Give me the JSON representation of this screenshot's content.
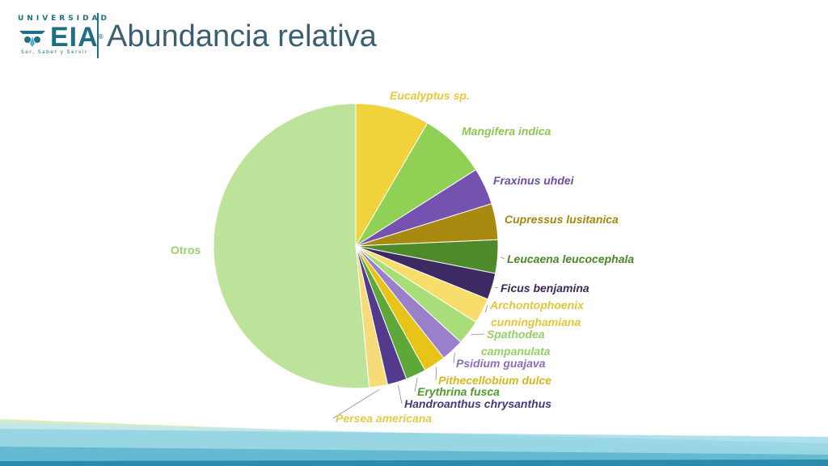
{
  "header": {
    "title": "Abundancia relativa",
    "logo": {
      "top_text": "UNIVERSIDAD",
      "main_text": "EIA",
      "registered": "®",
      "tagline": "Ser, Saber y Servir",
      "icon": "eia-owl-logo"
    }
  },
  "chart_data": {
    "type": "pie",
    "start_angle_deg": 0,
    "direction": "clockwise",
    "slices": [
      {
        "label": "Eucalyptus sp.",
        "value": 8.4,
        "color": "#f0d23a",
        "label_color": "#e9c83a"
      },
      {
        "label": "Mangifera indica",
        "value": 7.6,
        "color": "#8fd055",
        "label_color": "#8cc653"
      },
      {
        "label": "Fraxinus uhdei",
        "value": 4.2,
        "color": "#7552b0",
        "label_color": "#6f4fa6"
      },
      {
        "label": "Cupressus lusitanica",
        "value": 4.1,
        "color": "#a88a10",
        "label_color": "#a4870f"
      },
      {
        "label": "Leucaena leucocephala",
        "value": 3.8,
        "color": "#4e8a2a",
        "label_color": "#4b8628"
      },
      {
        "label": "Ficus benjamina",
        "value": 3.0,
        "color": "#3e2a63",
        "label_color": "#3b2860"
      },
      {
        "label": "Archontophoenix cunninghamiana",
        "value": 2.9,
        "color": "#f7de6a",
        "label_color": "#e4c53a"
      },
      {
        "label": "Spathodea campanulata",
        "value": 2.8,
        "color": "#a9dd7a",
        "label_color": "#96cf66"
      },
      {
        "label": "Psidium guajava",
        "value": 2.6,
        "color": "#9a7fcb",
        "label_color": "#8a6dc0"
      },
      {
        "label": "Pithecellobium dulce",
        "value": 2.5,
        "color": "#e8c418",
        "label_color": "#d8b820"
      },
      {
        "label": "Erythrina fusca",
        "value": 2.3,
        "color": "#5ea83a",
        "label_color": "#4f9a2c"
      },
      {
        "label": "Handroanthus chrysanthus",
        "value": 2.2,
        "color": "#533a8c",
        "label_color": "#4a3580"
      },
      {
        "label": "Persea americana",
        "value": 2.1,
        "color": "#f6dc78",
        "label_color": "#e5c94a"
      },
      {
        "label": "Otros",
        "value": 51.5,
        "color": "#bde29a",
        "label_color": "#9cd070",
        "italic": false
      }
    ]
  },
  "footer": {
    "wave_colors": [
      "#1e7fa0",
      "#3aa6c2",
      "#7ccbe0",
      "#bfe6f0",
      "#d9ecc0"
    ]
  }
}
